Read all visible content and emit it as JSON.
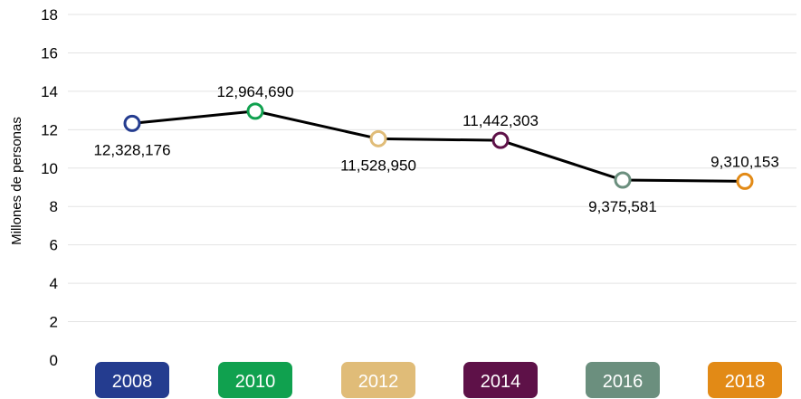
{
  "chart_data": {
    "type": "line",
    "ylabel": "Millones de personas",
    "ylim": [
      0,
      18
    ],
    "yticks": [
      "0",
      "2",
      "4",
      "6",
      "8",
      "10",
      "12",
      "14",
      "16",
      "18"
    ],
    "grid": true,
    "categories": [
      "2008",
      "2010",
      "2012",
      "2014",
      "2016",
      "2018"
    ],
    "series": [
      {
        "values": [
          12.328176,
          12.96469,
          11.52895,
          11.442303,
          9.375581,
          9.310153
        ],
        "labels": [
          "12,328,176",
          "12,964,690",
          "11,528,950",
          "11,442,303",
          "9,375,581",
          "9,310,153"
        ],
        "label_positions": [
          "below",
          "above",
          "below",
          "above",
          "below",
          "above"
        ]
      }
    ],
    "category_colors": [
      "#243c8f",
      "#10a14f",
      "#e0bc78",
      "#5e1148",
      "#6b8f7e",
      "#e28a16"
    ],
    "line_color": "#000000",
    "grid_color": "#e3e3e3"
  }
}
